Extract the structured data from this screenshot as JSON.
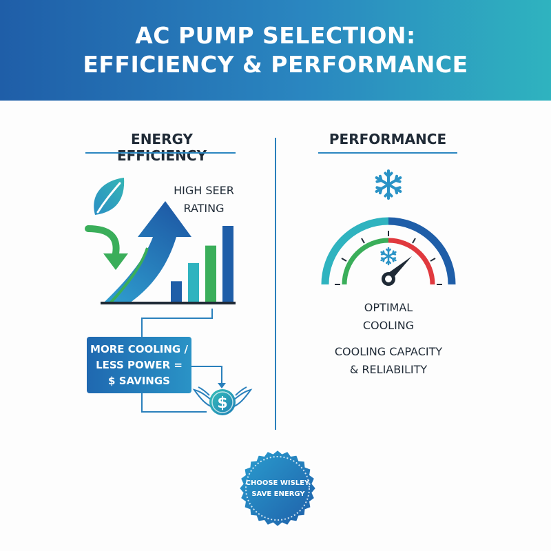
{
  "header": {
    "title_line1": "AC PUMP SELECTION:",
    "title_line2": "EFFICIENCY & PERFORMANCE"
  },
  "left_column": {
    "heading": "ENERGY EFFICIENCY",
    "chart_label_line1": "HIGH SEER",
    "chart_label_line2": "RATING",
    "bar_levels": [
      0.27,
      0.51,
      0.74,
      1.0
    ],
    "savings_line1": "MORE COOLING /",
    "savings_line2": "LESS POWER =",
    "savings_line3": "$ SAVINGS",
    "coin_symbol": "$"
  },
  "right_column": {
    "heading": "PERFORMANCE",
    "gauge_label_line1": "OPTIMAL",
    "gauge_label_line2": "COOLING",
    "caption_line1": "COOLING CAPACITY",
    "caption_line2": "& RELIABILITY"
  },
  "badge": {
    "line1": "CHOOSE WISLEY.",
    "line2": "SAVE ENERGY"
  },
  "colors": {
    "dark_blue": "#1f5ea8",
    "teal": "#2fb3bf",
    "green": "#3aae5a",
    "red": "#e0393e",
    "text": "#1f2a36"
  },
  "icons": [
    "leaf-icon",
    "down-arrow-icon",
    "up-arrow-icon",
    "snowflake-icon",
    "gauge-icon",
    "winged-coin-icon",
    "seal-badge-icon"
  ]
}
